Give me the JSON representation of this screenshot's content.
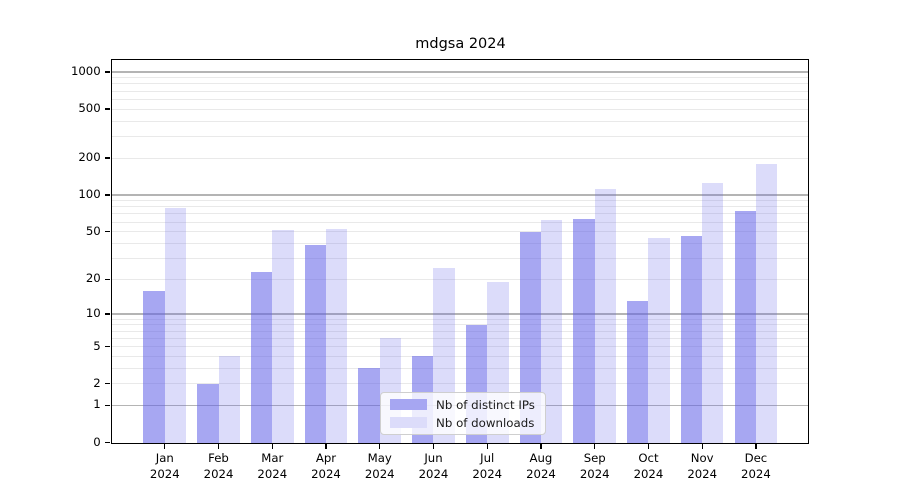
{
  "chart_data": {
    "type": "bar",
    "title": "mdgsa 2024",
    "categories": [
      {
        "month": "Jan",
        "year": "2024"
      },
      {
        "month": "Feb",
        "year": "2024"
      },
      {
        "month": "Mar",
        "year": "2024"
      },
      {
        "month": "Apr",
        "year": "2024"
      },
      {
        "month": "May",
        "year": "2024"
      },
      {
        "month": "Jun",
        "year": "2024"
      },
      {
        "month": "Jul",
        "year": "2024"
      },
      {
        "month": "Aug",
        "year": "2024"
      },
      {
        "month": "Sep",
        "year": "2024"
      },
      {
        "month": "Oct",
        "year": "2024"
      },
      {
        "month": "Nov",
        "year": "2024"
      },
      {
        "month": "Dec",
        "year": "2024"
      }
    ],
    "series": [
      {
        "name": "Nb of distinct IPs",
        "color": "rgba(94,94,232,0.55)",
        "solid_color": "#a6a6f2",
        "values": [
          16,
          2,
          23,
          39,
          3,
          4,
          8,
          50,
          64,
          13,
          46,
          74
        ]
      },
      {
        "name": "Nb of downloads",
        "color": "rgba(94,94,232,0.22)",
        "solid_color": "#dcdcfa",
        "values": [
          79,
          4,
          52,
          53,
          6,
          25,
          19,
          63,
          112,
          44,
          125,
          180
        ]
      }
    ],
    "y_axis": {
      "scale": "log1p",
      "tick_values": [
        0,
        1,
        2,
        5,
        10,
        20,
        50,
        100,
        200,
        500,
        1000
      ],
      "tick_labels": [
        "0",
        "1",
        "2",
        "5",
        "10",
        "20",
        "50",
        "100",
        "200",
        "500",
        "1000"
      ],
      "top_value": 1265,
      "major_gridlines": [
        1,
        10,
        100,
        1000
      ],
      "minor_gridlines": [
        2,
        3,
        4,
        5,
        6,
        7,
        8,
        9,
        20,
        30,
        40,
        50,
        60,
        70,
        80,
        90,
        200,
        300,
        400,
        500,
        600,
        700,
        800,
        900
      ],
      "major_grid_color": "#b4b4b4",
      "minor_grid_color": "#e9e9e9"
    },
    "xlabel": "",
    "ylabel": "",
    "legend_position": "lower center",
    "grid": "on",
    "spine_color": "#000000",
    "background_color": "#ffffff"
  },
  "legend": {
    "items": [
      {
        "label": "Nb of distinct IPs"
      },
      {
        "label": "Nb of downloads"
      }
    ]
  }
}
